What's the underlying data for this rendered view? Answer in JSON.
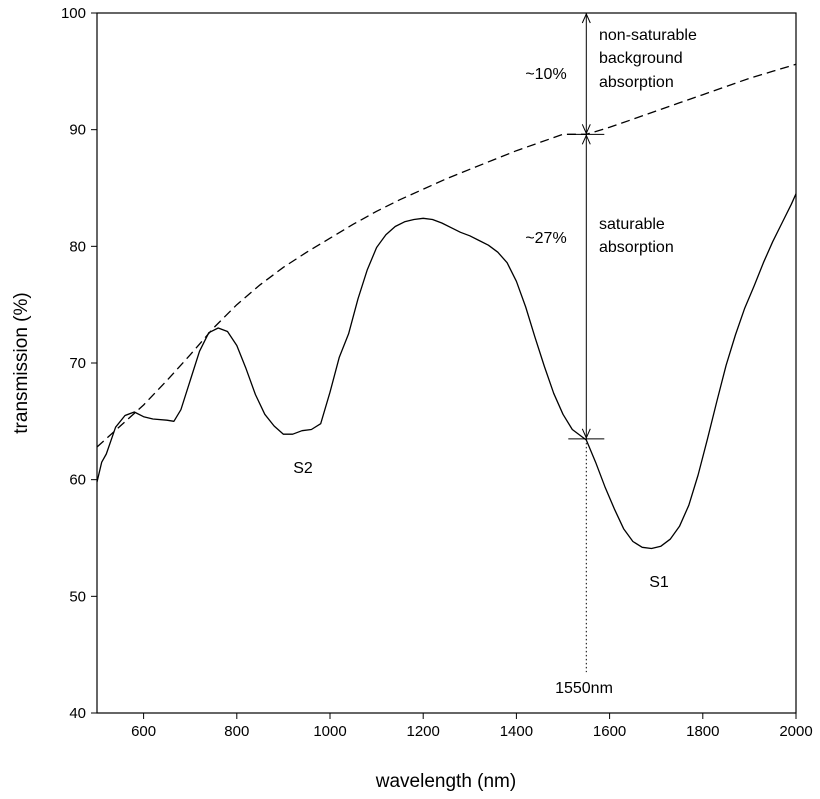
{
  "chart_data": {
    "type": "line",
    "title": "",
    "xlabel": "wavelength (nm)",
    "ylabel": "transmission (%)",
    "xlim": [
      500,
      2000
    ],
    "ylim": [
      40,
      100
    ],
    "xticks": [
      600,
      800,
      1000,
      1200,
      1400,
      1600,
      1800,
      2000
    ],
    "yticks": [
      40,
      50,
      60,
      70,
      80,
      90,
      100
    ],
    "grid": false,
    "legend": "none",
    "series": [
      {
        "style": "solid",
        "x": [
          500,
          510,
          520,
          540,
          560,
          580,
          600,
          620,
          650,
          665,
          680,
          700,
          720,
          740,
          760,
          780,
          800,
          820,
          840,
          860,
          880,
          900,
          920,
          940,
          960,
          980,
          1000,
          1020,
          1040,
          1060,
          1080,
          1100,
          1120,
          1140,
          1160,
          1180,
          1200,
          1220,
          1240,
          1260,
          1280,
          1300,
          1320,
          1340,
          1360,
          1380,
          1400,
          1420,
          1440,
          1460,
          1480,
          1500,
          1520,
          1540,
          1550,
          1570,
          1590,
          1610,
          1630,
          1650,
          1670,
          1690,
          1710,
          1730,
          1750,
          1770,
          1790,
          1810,
          1830,
          1850,
          1870,
          1890,
          1910,
          1930,
          1950,
          1970,
          1990,
          2000
        ],
        "y": [
          59.8,
          61.5,
          62.2,
          64.5,
          65.5,
          65.8,
          65.4,
          65.2,
          65.1,
          65.0,
          66.0,
          68.5,
          71.0,
          72.6,
          73.0,
          72.7,
          71.5,
          69.5,
          67.3,
          65.6,
          64.6,
          63.9,
          63.9,
          64.2,
          64.3,
          64.8,
          67.5,
          70.5,
          72.5,
          75.5,
          78.0,
          79.9,
          81.0,
          81.7,
          82.1,
          82.3,
          82.4,
          82.3,
          82.0,
          81.6,
          81.2,
          80.9,
          80.5,
          80.1,
          79.5,
          78.6,
          77.0,
          74.8,
          72.2,
          69.7,
          67.4,
          65.6,
          64.3,
          63.7,
          63.4,
          61.5,
          59.4,
          57.5,
          55.8,
          54.7,
          54.2,
          54.1,
          54.3,
          54.9,
          56.0,
          57.8,
          60.4,
          63.5,
          66.7,
          69.8,
          72.4,
          74.7,
          76.6,
          78.6,
          80.4,
          82.0,
          83.6,
          84.5
        ]
      },
      {
        "style": "dashed",
        "x": [
          500,
          550,
          600,
          650,
          700,
          750,
          800,
          850,
          900,
          950,
          1000,
          1050,
          1100,
          1150,
          1200,
          1250,
          1300,
          1350,
          1400,
          1450,
          1500,
          1550,
          1600,
          1650,
          1700,
          1750,
          1800,
          1850,
          1900,
          1950,
          2000
        ],
        "y": [
          62.8,
          64.6,
          66.4,
          68.5,
          70.7,
          73.0,
          75.0,
          76.7,
          78.2,
          79.5,
          80.7,
          81.9,
          83.0,
          84.0,
          84.9,
          85.8,
          86.6,
          87.4,
          88.2,
          88.9,
          89.6,
          89.6,
          90.2,
          90.9,
          91.6,
          92.3,
          93.0,
          93.7,
          94.4,
          95.0,
          95.6
        ]
      }
    ],
    "annotations": {
      "s2": "S2",
      "s1": "S1",
      "marker": "1550nm",
      "pct_10": "~10%",
      "pct_27": "~27%",
      "nonsat_line1": "non-saturable",
      "nonsat_line2": "background",
      "nonsat_line3": "absorption",
      "sat_line1": "saturable",
      "sat_line2": "absorption"
    },
    "arrows": {
      "x": 1550,
      "upper": [
        89.6,
        100
      ],
      "lower": [
        63.5,
        89.6
      ]
    }
  }
}
